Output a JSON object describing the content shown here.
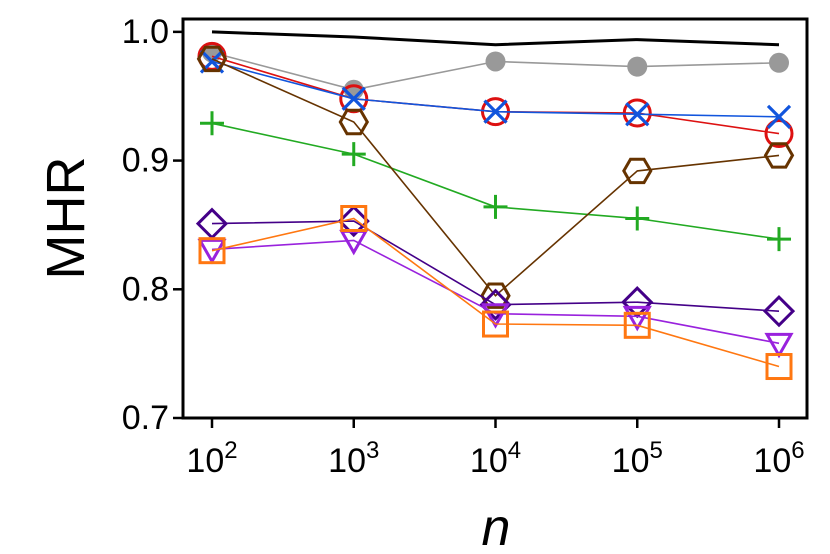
{
  "chart_data": {
    "type": "line",
    "title": "",
    "xlabel": "n",
    "ylabel": "MHR",
    "xscale": "log",
    "ylim": [
      0.7,
      1.01
    ],
    "grid": false,
    "x": [
      100,
      1000,
      10000,
      100000,
      1000000
    ],
    "x_tick_labels": [
      {
        "base": "10",
        "exp": "2"
      },
      {
        "base": "10",
        "exp": "3"
      },
      {
        "base": "10",
        "exp": "4"
      },
      {
        "base": "10",
        "exp": "5"
      },
      {
        "base": "10",
        "exp": "6"
      }
    ],
    "y_ticks": [
      0.7,
      0.8,
      0.9,
      1.0
    ],
    "y_tick_labels": [
      "0.7",
      "0.8",
      "0.9",
      "1.0"
    ],
    "series": [
      {
        "name": "black-line",
        "color": "#000000",
        "marker": "none",
        "values": [
          1.0,
          0.996,
          0.99,
          0.994,
          0.99
        ]
      },
      {
        "name": "gray-circle",
        "color": "#999999",
        "marker": "filled-circle",
        "values": [
          0.984,
          0.955,
          0.977,
          0.973,
          0.976
        ]
      },
      {
        "name": "red-circle",
        "color": "#dd1111",
        "marker": "open-circle",
        "values": [
          0.981,
          0.948,
          0.938,
          0.937,
          0.921
        ]
      },
      {
        "name": "blue-x",
        "color": "#1155dd",
        "marker": "x",
        "values": [
          0.977,
          0.948,
          0.938,
          0.936,
          0.934
        ]
      },
      {
        "name": "green-plus",
        "color": "#22aa22",
        "marker": "plus",
        "values": [
          0.929,
          0.905,
          0.864,
          0.855,
          0.839
        ]
      },
      {
        "name": "brown-hexagon",
        "color": "#663300",
        "marker": "hexagon",
        "values": [
          0.979,
          0.93,
          0.795,
          0.892,
          0.904
        ]
      },
      {
        "name": "indigo-diamond",
        "color": "#440088",
        "marker": "diamond",
        "values": [
          0.851,
          0.853,
          0.788,
          0.79,
          0.783
        ]
      },
      {
        "name": "purple-triangle",
        "color": "#9922dd",
        "marker": "triangle-down",
        "values": [
          0.831,
          0.838,
          0.781,
          0.779,
          0.758
        ]
      },
      {
        "name": "orange-square",
        "color": "#ff7711",
        "marker": "open-square",
        "values": [
          0.83,
          0.855,
          0.773,
          0.772,
          0.74
        ]
      }
    ]
  }
}
